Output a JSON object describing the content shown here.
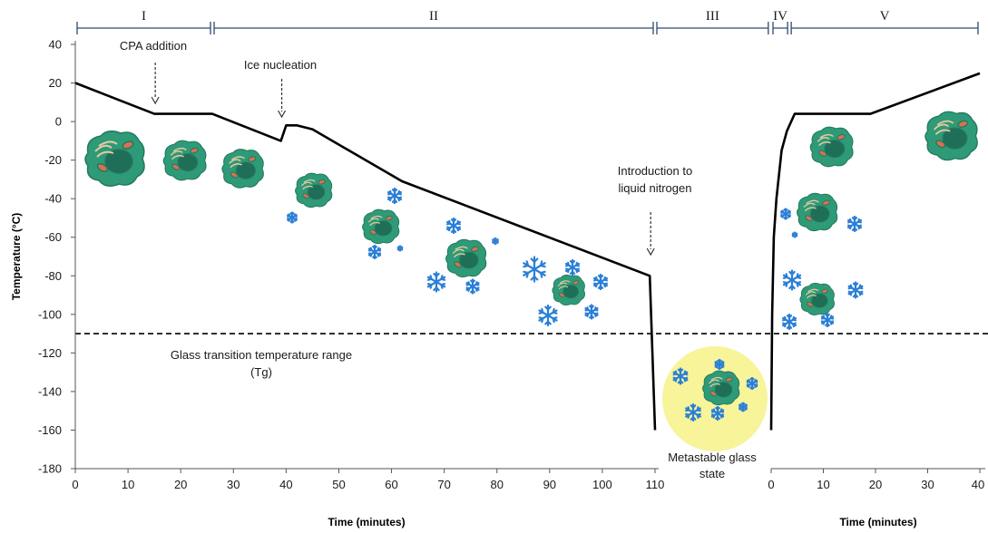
{
  "chart_data": {
    "type": "line",
    "ylabel": "Temperature (°C)",
    "ylim": [
      -180,
      40
    ],
    "yticks": [
      40,
      20,
      0,
      -20,
      -40,
      -60,
      -80,
      -100,
      -120,
      -140,
      -160,
      -180
    ],
    "segments": [
      {
        "xlabel": "Time (minutes)",
        "xlim": [
          0,
          110
        ],
        "xticks": [
          0,
          10,
          20,
          30,
          40,
          50,
          60,
          70,
          80,
          90,
          100,
          110
        ],
        "x": [
          0,
          15,
          26,
          39,
          40,
          42,
          45,
          62,
          109,
          110
        ],
        "y": [
          20,
          4,
          4,
          -10,
          -2,
          -2,
          -4,
          -31,
          -80,
          -160
        ]
      },
      {
        "xlabel": "Time (minutes)",
        "xlim": [
          0,
          40
        ],
        "xticks": [
          0,
          10,
          20,
          30,
          40
        ],
        "x": [
          0,
          0.2,
          0.5,
          1,
          2,
          3,
          4.5,
          19,
          40
        ],
        "y": [
          -160,
          -100,
          -60,
          -40,
          -15,
          -5,
          4,
          4,
          25
        ]
      }
    ],
    "reference_line": {
      "y": -110,
      "style": "dashed"
    },
    "phases": [
      {
        "label": "I",
        "from": [
          0,
          0
        ],
        "to": [
          0,
          26
        ]
      },
      {
        "label": "II",
        "from": [
          0,
          26
        ],
        "to": [
          0,
          110
        ]
      },
      {
        "label": "III",
        "from": [
          0,
          110
        ],
        "to": [
          1,
          -0.2
        ]
      },
      {
        "label": "IV",
        "from": [
          1,
          0
        ],
        "to": [
          1,
          3.5
        ]
      },
      {
        "label": "V",
        "from": [
          1,
          3.5
        ],
        "to": [
          1,
          40
        ]
      }
    ],
    "annotations": [
      {
        "text": [
          "CPA addition"
        ],
        "arrow_at": [
          0,
          15
        ]
      },
      {
        "text": [
          "Ice nucleation"
        ],
        "arrow_at": [
          0,
          39
        ]
      },
      {
        "text": [
          "Introduction to",
          "liquid nitrogen"
        ],
        "arrow_at": [
          0,
          109
        ]
      },
      {
        "text": [
          "Glass transition temperature range",
          "(Tg)"
        ]
      },
      {
        "text": [
          "Metastable glass",
          "state"
        ]
      }
    ],
    "colors": {
      "line": "#000000",
      "cell_body": "#2e9a78",
      "cell_nucleus": "#1f6e58",
      "cell_organelle": "#d9704f",
      "cell_fibers": "#e8c9a0",
      "ice": "#2b7fd6",
      "glass_state": "#f7f49a",
      "phase_bar": "#2e4a73"
    }
  }
}
